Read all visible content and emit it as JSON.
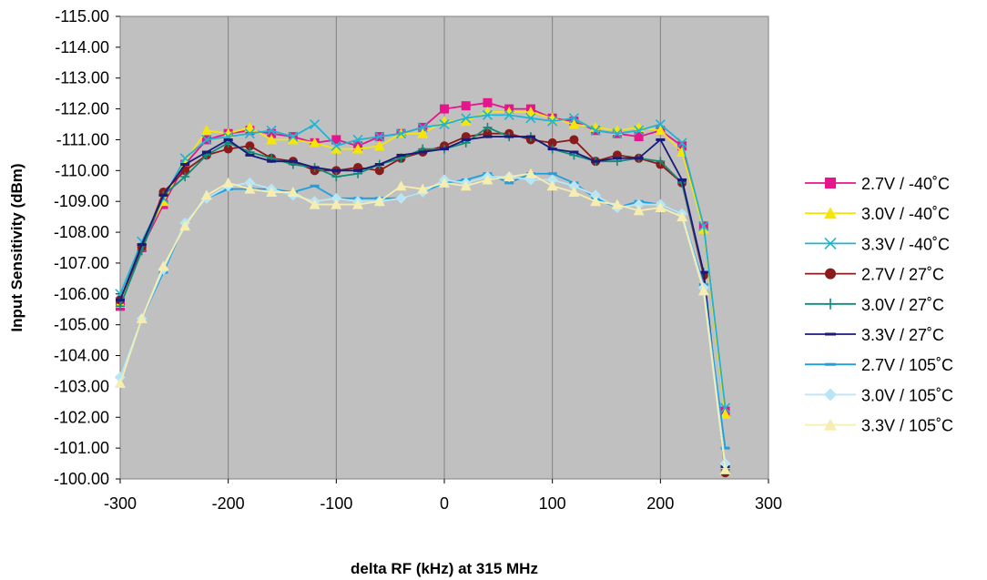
{
  "chart_data": {
    "type": "line",
    "xlabel": "delta RF (kHz) at 315 MHz",
    "ylabel": "Input Sensitivity (dBm)",
    "xlim": [
      -300,
      300
    ],
    "ylim": [
      -100,
      -115
    ],
    "y_axis_reversed": true,
    "xticks": [
      "-300",
      "-200",
      "-100",
      "0",
      "100",
      "200",
      "300"
    ],
    "yticks": [
      "-115.00",
      "-114.00",
      "-113.00",
      "-112.00",
      "-111.00",
      "-110.00",
      "-109.00",
      "-108.00",
      "-107.00",
      "-106.00",
      "-105.00",
      "-104.00",
      "-103.00",
      "-102.00",
      "-101.00",
      "-100.00"
    ],
    "grid": "vertical",
    "legend_position": "right",
    "plot_background": "#c0c0c0",
    "x": [
      -300,
      -280,
      -260,
      -240,
      -220,
      -200,
      -180,
      -160,
      -140,
      -120,
      -100,
      -80,
      -60,
      -40,
      -20,
      0,
      20,
      40,
      60,
      80,
      100,
      120,
      140,
      160,
      180,
      200,
      220,
      240,
      260
    ],
    "series": [
      {
        "name": "2.7V / -40˚C",
        "color": "#e5168c",
        "marker": "square",
        "values": [
          -105.6,
          -107.5,
          -108.9,
          -110.2,
          -111.0,
          -111.2,
          -111.3,
          -111.2,
          -111.1,
          -110.9,
          -111.0,
          -110.8,
          -111.1,
          -111.2,
          -111.4,
          -112.0,
          -112.1,
          -112.2,
          -112.0,
          -112.0,
          -111.7,
          -111.6,
          -111.3,
          -111.2,
          -111.1,
          -111.3,
          -110.8,
          -108.2,
          -102.2
        ]
      },
      {
        "name": "3.0V / -40˚C",
        "color": "#f5e60a",
        "marker": "triangle",
        "values": [
          -105.7,
          -107.6,
          -109.0,
          -110.3,
          -111.3,
          -111.2,
          -111.4,
          -111.0,
          -111.0,
          -110.9,
          -110.7,
          -110.7,
          -110.8,
          -111.2,
          -111.2,
          -111.6,
          -111.6,
          -111.9,
          -111.9,
          -111.9,
          -111.7,
          -111.5,
          -111.4,
          -111.3,
          -111.4,
          -111.3,
          -110.6,
          -108.1,
          -102.1
        ]
      },
      {
        "name": "3.3V / -40˚C",
        "color": "#1fb4d2",
        "marker": "x",
        "values": [
          -106.0,
          -107.7,
          -109.1,
          -110.4,
          -111.0,
          -111.1,
          -111.2,
          -111.3,
          -111.1,
          -111.5,
          -110.8,
          -111.0,
          -111.1,
          -111.2,
          -111.4,
          -111.5,
          -111.7,
          -111.8,
          -111.8,
          -111.7,
          -111.6,
          -111.7,
          -111.3,
          -111.2,
          -111.3,
          -111.5,
          -110.9,
          -108.2,
          -102.3
        ]
      },
      {
        "name": "2.7V / 27˚C",
        "color": "#8b1a1a",
        "marker": "circle",
        "values": [
          -105.8,
          -107.5,
          -109.3,
          -110.0,
          -110.5,
          -110.7,
          -110.8,
          -110.4,
          -110.3,
          -110.0,
          -110.0,
          -110.1,
          -110.0,
          -110.4,
          -110.6,
          -110.8,
          -111.1,
          -111.2,
          -111.2,
          -111.0,
          -110.9,
          -111.0,
          -110.3,
          -110.5,
          -110.4,
          -110.2,
          -109.6,
          -106.6,
          -100.2
        ]
      },
      {
        "name": "3.0V / 27˚C",
        "color": "#0e8c7a",
        "marker": "plus",
        "values": [
          -105.6,
          -107.4,
          -109.2,
          -109.8,
          -110.5,
          -110.9,
          -110.6,
          -110.4,
          -110.2,
          -110.1,
          -109.8,
          -109.9,
          -110.2,
          -110.4,
          -110.7,
          -110.7,
          -110.9,
          -111.4,
          -111.1,
          -111.1,
          -110.7,
          -110.5,
          -110.3,
          -110.3,
          -110.4,
          -110.3,
          -109.6,
          -106.7,
          -100.3
        ]
      },
      {
        "name": "3.3V / 27˚C",
        "color": "#1a1a7a",
        "marker": "dash",
        "values": [
          -105.8,
          -107.6,
          -109.2,
          -110.2,
          -110.6,
          -111.0,
          -110.5,
          -110.3,
          -110.3,
          -110.1,
          -110.0,
          -110.0,
          -110.2,
          -110.5,
          -110.6,
          -110.7,
          -111.0,
          -111.1,
          -111.1,
          -111.1,
          -110.7,
          -110.6,
          -110.3,
          -110.4,
          -110.4,
          -111.0,
          -109.7,
          -106.7,
          -100.4
        ]
      },
      {
        "name": "2.7V / 105˚C",
        "color": "#1ea0e0",
        "marker": "dash",
        "values": [
          -103.3,
          -105.2,
          -106.7,
          -108.3,
          -109.1,
          -109.4,
          -109.4,
          -109.4,
          -109.3,
          -109.5,
          -109.1,
          -109.1,
          -109.1,
          -109.1,
          -109.3,
          -109.6,
          -109.7,
          -109.9,
          -109.6,
          -109.9,
          -109.9,
          -109.6,
          -109.1,
          -108.8,
          -109.0,
          -108.9,
          -108.6,
          -106.3,
          -101.0
        ]
      },
      {
        "name": "3.0V / 105˚C",
        "color": "#b8e6f5",
        "marker": "diamond",
        "values": [
          -103.3,
          -105.2,
          -106.8,
          -108.3,
          -109.1,
          -109.5,
          -109.6,
          -109.4,
          -109.2,
          -109.0,
          -109.1,
          -109.0,
          -109.0,
          -109.1,
          -109.3,
          -109.7,
          -109.6,
          -109.8,
          -109.8,
          -109.7,
          -109.7,
          -109.5,
          -109.2,
          -108.8,
          -108.9,
          -108.9,
          -108.6,
          -106.2,
          -100.5
        ]
      },
      {
        "name": "3.3V / 105˚C",
        "color": "#f5eeb0",
        "marker": "triangle",
        "values": [
          -103.1,
          -105.2,
          -106.9,
          -108.2,
          -109.2,
          -109.6,
          -109.4,
          -109.3,
          -109.3,
          -108.9,
          -108.9,
          -108.9,
          -109.0,
          -109.5,
          -109.4,
          -109.6,
          -109.5,
          -109.7,
          -109.8,
          -109.9,
          -109.5,
          -109.3,
          -109.0,
          -108.9,
          -108.7,
          -108.8,
          -108.5,
          -106.1,
          -100.3
        ]
      }
    ]
  }
}
